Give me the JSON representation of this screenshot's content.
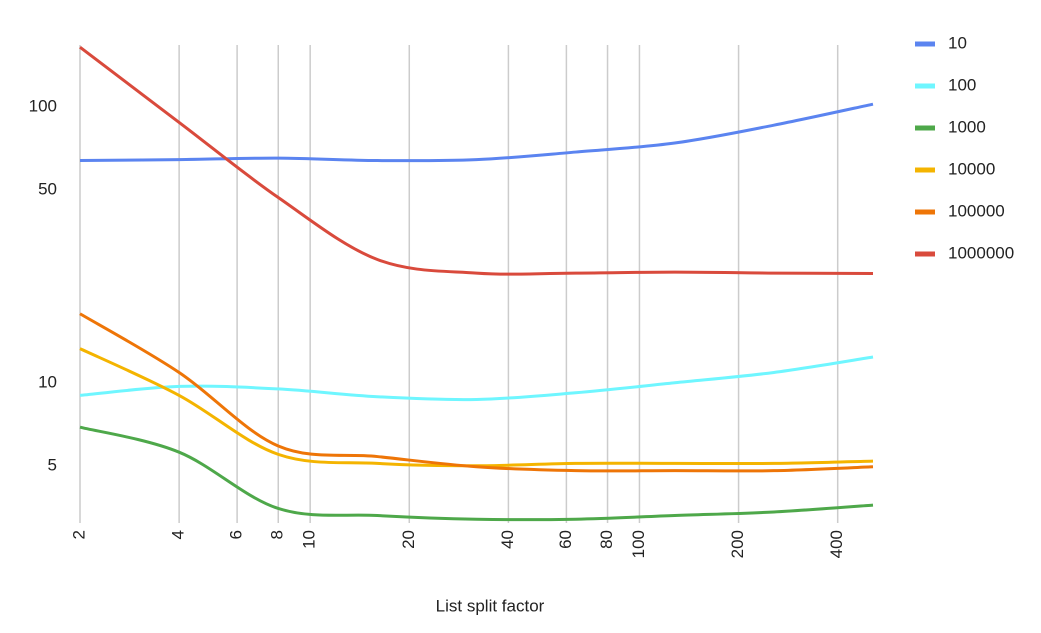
{
  "chart_data": {
    "type": "line",
    "x_label": "List split factor",
    "x": [
      2,
      4,
      8,
      16,
      32,
      64,
      128,
      256,
      512
    ],
    "series": [
      {
        "name": "10",
        "color": "#5b84f0",
        "values": [
          64,
          64.5,
          65.3,
          64,
          64.5,
          68.7,
          74.1,
          86,
          102.5
        ]
      },
      {
        "name": "100",
        "color": "#6ff6ff",
        "values": [
          9.0,
          9.7,
          9.5,
          8.9,
          8.7,
          9.2,
          10,
          10.9,
          12.4
        ]
      },
      {
        "name": "1000",
        "color": "#4ea84a",
        "values": [
          6.9,
          5.6,
          3.5,
          3.3,
          3.2,
          3.2,
          3.3,
          3.4,
          3.6
        ]
      },
      {
        "name": "10000",
        "color": "#f4b400",
        "values": [
          13.3,
          9.0,
          5.5,
          5.1,
          5.0,
          5.1,
          5.1,
          5.1,
          5.2
        ]
      },
      {
        "name": "100000",
        "color": "#ee7507",
        "values": [
          17.8,
          10.9,
          5.9,
          5.4,
          4.96,
          4.8,
          4.8,
          4.8,
          4.96
        ]
      },
      {
        "name": "1000000",
        "color": "#d94a3c",
        "values": [
          165,
          88,
          47,
          28,
          25,
          25,
          25.2,
          25,
          24.9
        ]
      }
    ],
    "xlog": true,
    "ylog": true,
    "xlim": [
      2,
      512
    ],
    "ylim": [
      3.1,
      168
    ],
    "xticks": [
      2,
      4,
      6,
      8,
      10,
      20,
      40,
      60,
      80,
      100,
      200,
      400
    ],
    "yticks": [
      5,
      10,
      50,
      100
    ],
    "grid": "x",
    "legend": "right"
  }
}
